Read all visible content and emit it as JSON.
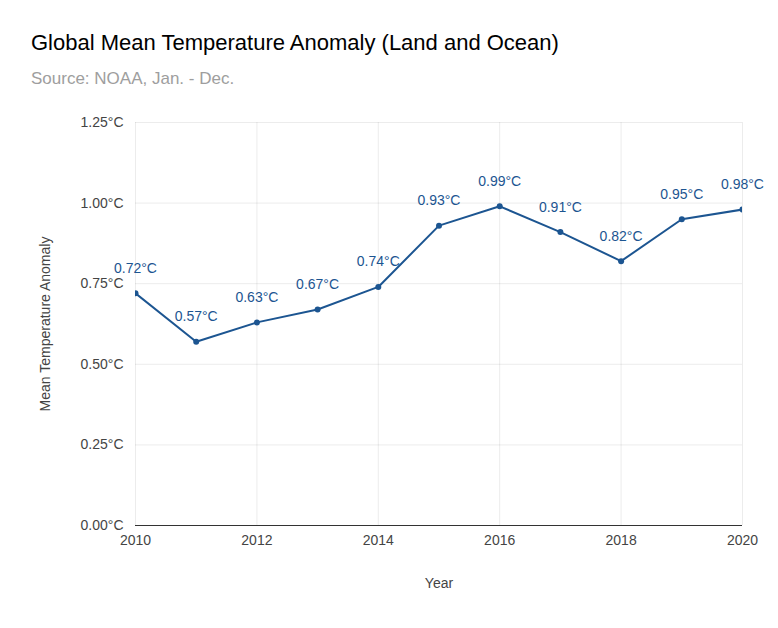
{
  "chart_data": {
    "type": "line",
    "title": "Global Mean Temperature Anomaly (Land and Ocean)",
    "subtitle": "Source: NOAA, Jan. - Dec.",
    "x_label": "Year",
    "y_label": "Mean Temperature Anomaly",
    "x": [
      2010,
      2011,
      2012,
      2013,
      2014,
      2015,
      2016,
      2017,
      2018,
      2019,
      2020
    ],
    "values": [
      0.72,
      0.57,
      0.63,
      0.67,
      0.74,
      0.93,
      0.99,
      0.91,
      0.82,
      0.95,
      0.98
    ],
    "value_labels": [
      "0.72°C",
      "0.57°C",
      "0.63°C",
      "0.67°C",
      "0.74°C",
      "0.93°C",
      "0.99°C",
      "0.91°C",
      "0.82°C",
      "0.95°C",
      "0.98°C"
    ],
    "color": "#1c5591",
    "marker": "circle",
    "data_labels": true,
    "xlim": [
      2010,
      2020
    ],
    "xticks": [
      2010,
      2012,
      2014,
      2016,
      2018,
      2020
    ],
    "ylim": [
      0,
      1.25
    ],
    "yticks": [
      {
        "value": 0,
        "label": "0.00°C"
      },
      {
        "value": 0.25,
        "label": "0.25°C"
      },
      {
        "value": 0.5,
        "label": "0.50°C"
      },
      {
        "value": 0.75,
        "label": "0.75°C"
      },
      {
        "value": 1,
        "label": "1.00°C"
      },
      {
        "value": 1.25,
        "label": "1.25°C"
      }
    ],
    "grid": true
  }
}
